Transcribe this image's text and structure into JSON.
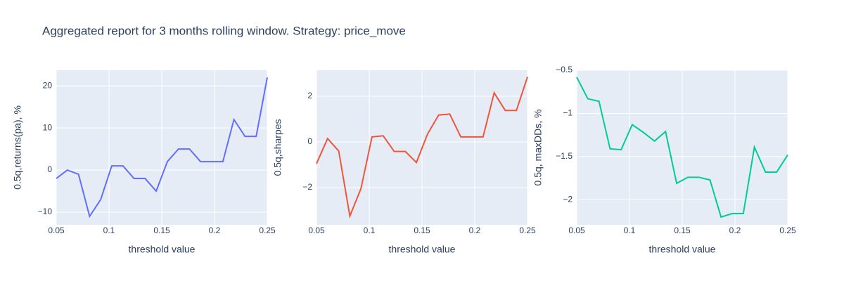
{
  "title": "Aggregated report for 3 months rolling window. Strategy: price_move",
  "chart_data": [
    {
      "type": "line",
      "x_label": "threshold value",
      "y_label": "0.5q,returns(pa), %",
      "color": "#636efa",
      "x": [
        0.05,
        0.0605,
        0.0711,
        0.0816,
        0.0921,
        0.1026,
        0.1132,
        0.1237,
        0.1342,
        0.1447,
        0.1553,
        0.1658,
        0.1763,
        0.1868,
        0.1974,
        0.2079,
        0.2184,
        0.2289,
        0.2395,
        0.25
      ],
      "values": [
        -2,
        0,
        -1,
        -11,
        -7,
        1,
        1,
        -2,
        -2,
        -5,
        2,
        5,
        5,
        2,
        2,
        2,
        12,
        8,
        8,
        22
      ],
      "xlim": [
        0.05,
        0.25
      ],
      "xticks": [
        0.05,
        0.1,
        0.15,
        0.2,
        0.25
      ],
      "ylim": [
        -13,
        23.7
      ],
      "yticks": [
        {
          "value": -10,
          "label": "−10"
        },
        0,
        10,
        20
      ],
      "grid": true
    },
    {
      "type": "line",
      "x_label": "threshold value",
      "y_label": "0.5q,sharpes",
      "color": "#ef553b",
      "x": [
        0.05,
        0.0605,
        0.0711,
        0.0816,
        0.0921,
        0.1026,
        0.1132,
        0.1237,
        0.1342,
        0.1447,
        0.1553,
        0.1658,
        0.1763,
        0.1868,
        0.1974,
        0.2079,
        0.2184,
        0.2289,
        0.2395,
        0.25
      ],
      "values": [
        -0.95,
        0.15,
        -0.4,
        -3.25,
        -2.05,
        0.22,
        0.27,
        -0.42,
        -0.42,
        -0.9,
        0.35,
        1.18,
        1.22,
        0.22,
        0.22,
        0.22,
        2.15,
        1.38,
        1.38,
        2.85
      ],
      "xlim": [
        0.05,
        0.25
      ],
      "xticks": [
        0.05,
        0.1,
        0.15,
        0.2,
        0.25
      ],
      "ylim": [
        -3.63,
        3.14
      ],
      "yticks": [
        {
          "value": -2,
          "label": "−2"
        },
        0,
        2
      ],
      "grid": true
    },
    {
      "type": "line",
      "x_label": "threshold value",
      "y_label": "0.5q, maxDDs, %",
      "color": "#00cc96",
      "x": [
        0.05,
        0.0605,
        0.0711,
        0.0816,
        0.0921,
        0.1026,
        0.1132,
        0.1237,
        0.1342,
        0.1447,
        0.1553,
        0.1658,
        0.1763,
        0.1868,
        0.1974,
        0.2079,
        0.2184,
        0.2289,
        0.2395,
        0.25
      ],
      "values": [
        -0.58,
        -0.83,
        -0.86,
        -1.41,
        -1.42,
        -1.13,
        -1.22,
        -1.32,
        -1.21,
        -1.81,
        -1.74,
        -1.74,
        -1.77,
        -2.2,
        -2.16,
        -2.16,
        -1.39,
        -1.68,
        -1.68,
        -1.48
      ],
      "xlim": [
        0.05,
        0.25
      ],
      "xticks": [
        0.05,
        0.1,
        0.15,
        0.2,
        0.25
      ],
      "ylim": [
        -2.29,
        -0.5
      ],
      "yticks": [
        {
          "value": -2,
          "label": "−2"
        },
        {
          "value": -1.5,
          "label": "−1.5"
        },
        {
          "value": -1,
          "label": "−1"
        },
        {
          "value": -0.5,
          "label": "−0.5"
        }
      ],
      "grid": true
    }
  ]
}
